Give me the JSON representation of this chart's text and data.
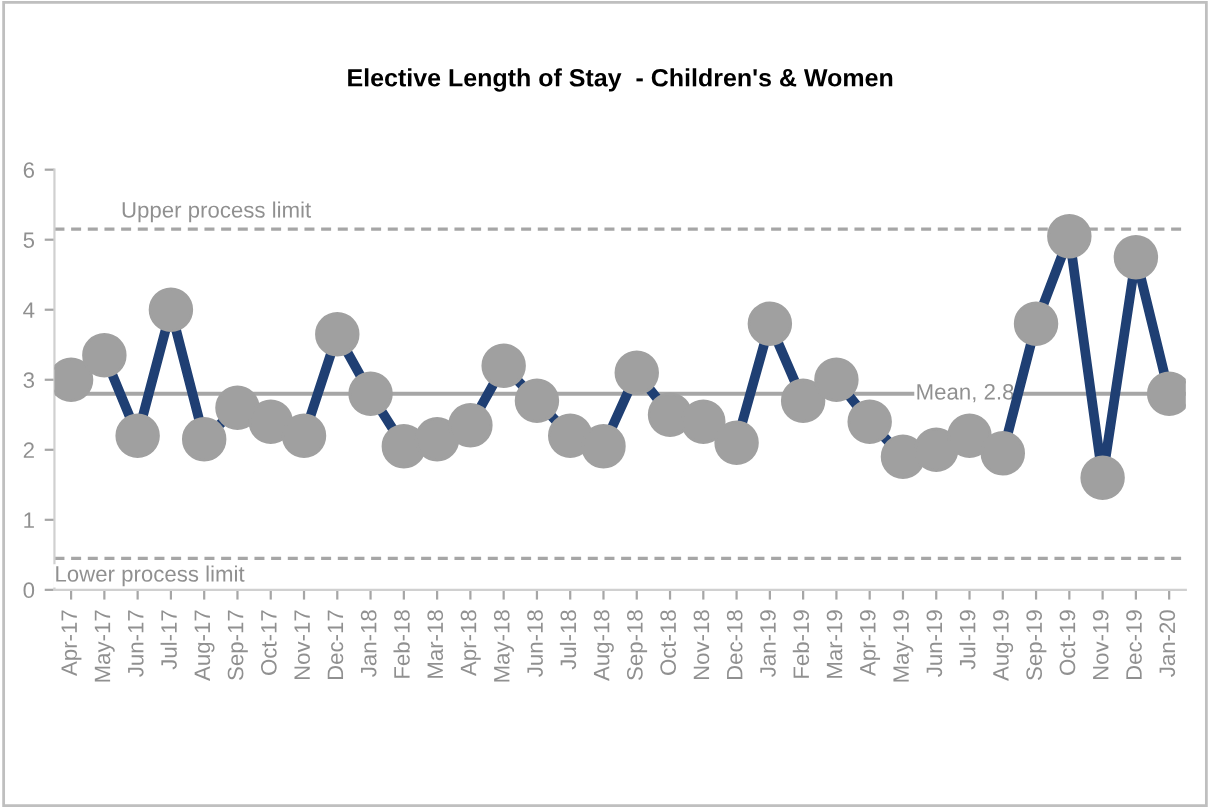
{
  "chart_data": {
    "type": "line",
    "title": "Elective Length of Stay  - Children's & Women",
    "categories": [
      "Apr-17",
      "May-17",
      "Jun-17",
      "Jul-17",
      "Aug-17",
      "Sep-17",
      "Oct-17",
      "Nov-17",
      "Dec-17",
      "Jan-18",
      "Feb-18",
      "Mar-18",
      "Apr-18",
      "May-18",
      "Jun-18",
      "Jul-18",
      "Aug-18",
      "Sep-18",
      "Oct-18",
      "Nov-18",
      "Dec-18",
      "Jan-19",
      "Feb-19",
      "Mar-19",
      "Apr-19",
      "May-19",
      "Jun-19",
      "Jul-19",
      "Aug-19",
      "Sep-19",
      "Oct-19",
      "Nov-19",
      "Dec-19",
      "Jan-20"
    ],
    "series": [
      {
        "color": "#1f3f73",
        "values": [
          3.0,
          3.35,
          2.2,
          4.0,
          2.15,
          2.6,
          2.4,
          2.2,
          3.65,
          2.8,
          2.05,
          2.15,
          2.35,
          3.2,
          2.7,
          2.2,
          2.05,
          3.1,
          2.5,
          2.4,
          2.1,
          3.8,
          2.7,
          3.0,
          2.4,
          1.9,
          2.0,
          2.2,
          1.95,
          3.8,
          5.05,
          1.6,
          4.75,
          2.8
        ]
      }
    ],
    "ylim": [
      0,
      6
    ],
    "yticks": [
      0,
      1,
      2,
      3,
      4,
      5,
      6
    ],
    "grid": false,
    "legend": false,
    "marker": "circle",
    "line_style": "solid",
    "ref_lines": [
      {
        "axis": "y",
        "value": 5.15,
        "label": "Upper process limit",
        "color": "#a6a6a6",
        "line_style": "dashed"
      },
      {
        "axis": "y",
        "value": 0.45,
        "label": "Lower process limit",
        "color": "#a6a6a6",
        "line_style": "dashed"
      },
      {
        "axis": "y",
        "value": 2.8,
        "label": "Mean, 2.8",
        "color": "#a6a6a6",
        "line_style": "solid"
      }
    ]
  }
}
